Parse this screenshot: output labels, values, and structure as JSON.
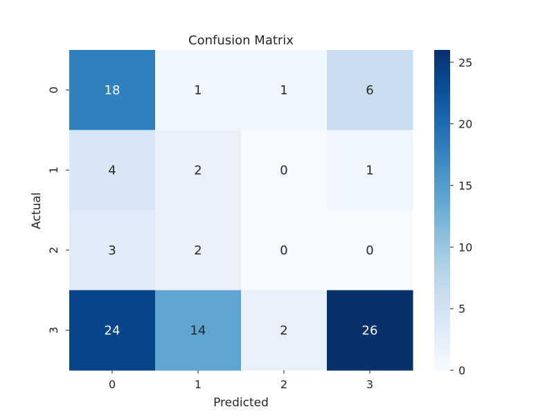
{
  "chart_data": {
    "type": "heatmap",
    "title": "Confusion Matrix",
    "xlabel": "Predicted",
    "ylabel": "Actual",
    "x_categories": [
      "0",
      "1",
      "2",
      "3"
    ],
    "y_categories": [
      "0",
      "1",
      "2",
      "3"
    ],
    "values": [
      [
        18,
        1,
        1,
        6
      ],
      [
        4,
        2,
        0,
        1
      ],
      [
        3,
        2,
        0,
        0
      ],
      [
        24,
        14,
        2,
        26
      ]
    ],
    "vmin": 0,
    "vmax": 26,
    "colormap": "Blues",
    "colorbar_ticks": [
      0,
      5,
      10,
      15,
      20,
      25
    ],
    "annotated": true
  }
}
